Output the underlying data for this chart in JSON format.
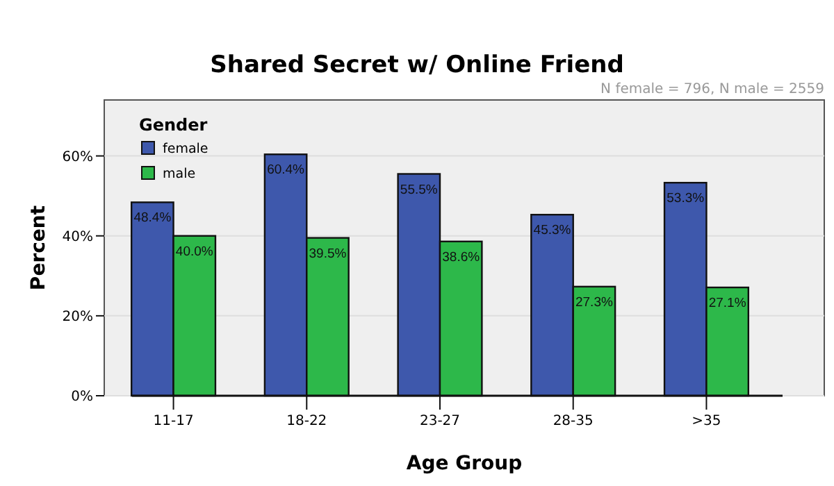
{
  "chart_data": {
    "type": "bar",
    "title": "Shared Secret w/ Online Friend",
    "xlabel": "Age Group",
    "ylabel": "Percent",
    "legend_title": "Gender",
    "annotations": [
      "N female = 796, N male = 2559"
    ],
    "categories": [
      "11-17",
      "18-22",
      "23-27",
      "28-35",
      ">35"
    ],
    "series": [
      {
        "name": "female",
        "color": "#3e58ac",
        "values": [
          48.4,
          60.4,
          55.5,
          45.3,
          53.3
        ],
        "value_labels": [
          "48.4%",
          "60.4%",
          "55.5%",
          "45.3%",
          "53.3%"
        ]
      },
      {
        "name": "male",
        "color": "#2db84a",
        "values": [
          40.0,
          39.5,
          38.6,
          27.3,
          27.1
        ],
        "value_labels": [
          "40.0%",
          "39.5%",
          "38.6%",
          "27.3%",
          "27.1%"
        ]
      }
    ],
    "ylim": [
      0,
      74
    ],
    "yticks": [
      {
        "value": 0,
        "label": "0%"
      },
      {
        "value": 20,
        "label": "20%"
      },
      {
        "value": 40,
        "label": "40%"
      },
      {
        "value": 60,
        "label": "60%"
      }
    ],
    "grid": "y",
    "legend": "top left"
  }
}
